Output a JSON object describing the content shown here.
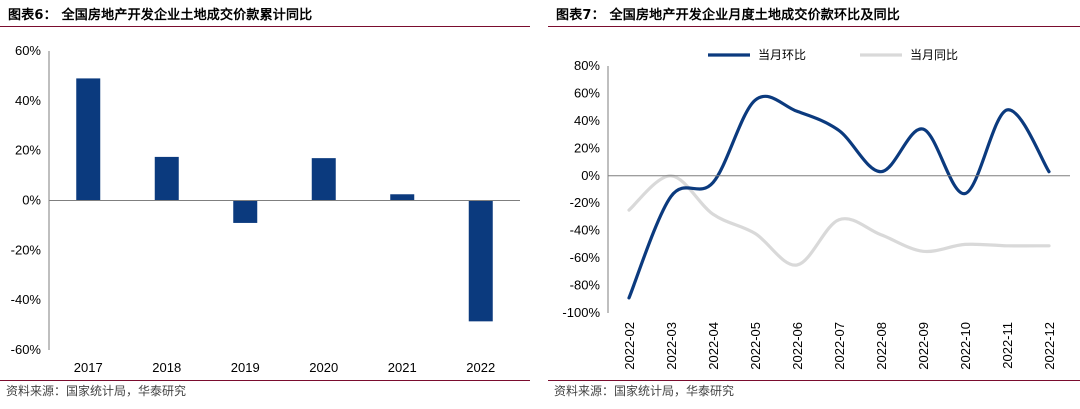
{
  "left": {
    "title": "图表6：  全国房地产开发企业土地成交价款累计同比",
    "source": "资料来源：国家统计局，华泰研究"
  },
  "right": {
    "title": "图表7：  全国房地产开发企业月度土地成交价款环比及同比",
    "source": "资料来源：国家统计局，华泰研究"
  },
  "colors": {
    "navy": "#0b3a7e",
    "gray": "#d9d9d9",
    "rule": "#7a0c2e"
  },
  "chart_data": [
    {
      "type": "bar",
      "title": "",
      "categories": [
        "2017",
        "2018",
        "2019",
        "2020",
        "2021",
        "2022"
      ],
      "values": [
        49,
        17.5,
        -9,
        17,
        2.5,
        -48.5
      ],
      "yticks": [
        "60%",
        "40%",
        "20%",
        "0%",
        "-20%",
        "-40%",
        "-60%"
      ],
      "ylim": [
        -60,
        60
      ],
      "grid": false,
      "legend": "none"
    },
    {
      "type": "line",
      "title": "",
      "categories": [
        "2022-02",
        "2022-03",
        "2022-04",
        "2022-05",
        "2022-06",
        "2022-07",
        "2022-08",
        "2022-09",
        "2022-10",
        "2022-11",
        "2022-12"
      ],
      "series": [
        {
          "name": "当月环比",
          "color": "#0b3a7e",
          "values": [
            -89,
            -15,
            -5,
            55,
            47,
            33,
            3,
            34,
            -13,
            48,
            3
          ]
        },
        {
          "name": "当月同比",
          "color": "#d9d9d9",
          "values": [
            -25,
            0,
            -28,
            -42,
            -65,
            -32,
            -43,
            -55,
            -50,
            -51,
            -51
          ]
        }
      ],
      "yticks": [
        "80%",
        "60%",
        "40%",
        "20%",
        "0%",
        "-20%",
        "-40%",
        "-60%",
        "-80%",
        "-100%"
      ],
      "ylim": [
        -100,
        80
      ],
      "grid": false,
      "legend": "top"
    }
  ]
}
